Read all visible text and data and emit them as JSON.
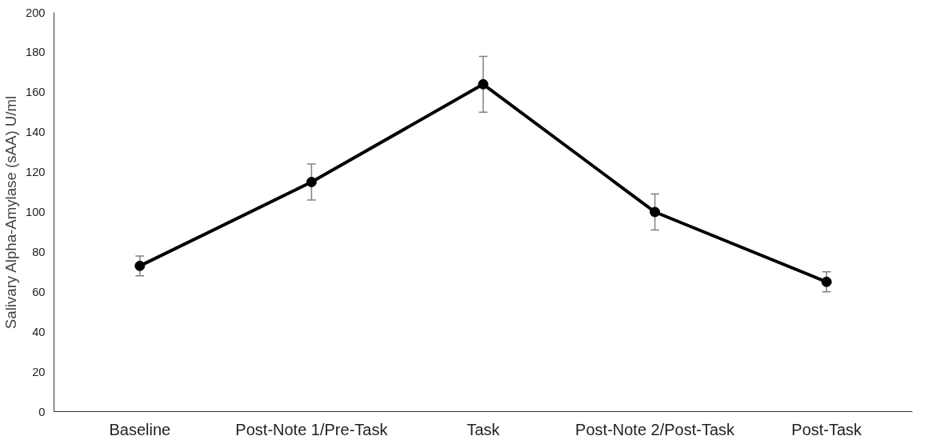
{
  "chart_data": {
    "type": "line",
    "ylabel": "Salivary Alpha-Amylase (sAA) U/ml",
    "categories": [
      "Baseline",
      "Post-Note 1/Pre-Task",
      "Task",
      "Post-Note 2/Post-Task",
      "Post-Task"
    ],
    "series": [
      {
        "color": "#000000",
        "values": [
          73,
          115,
          164,
          100,
          65
        ],
        "errors": [
          5,
          9,
          14,
          9,
          5
        ]
      }
    ],
    "ylim": [
      0,
      200
    ],
    "yticks": [
      0,
      20,
      40,
      60,
      80,
      100,
      120,
      140,
      160,
      180,
      200
    ],
    "grid": false,
    "marker": "circle",
    "line_style": "solid"
  }
}
